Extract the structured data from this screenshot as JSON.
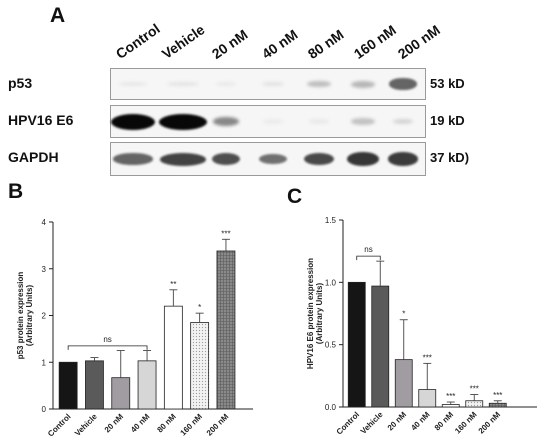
{
  "panels": {
    "a": "A",
    "b": "B",
    "c": "C"
  },
  "blot": {
    "lanes": [
      "Control",
      "Vehicle",
      "20 nM",
      "40 nM",
      "80 nM",
      "160 nM",
      "200 nM"
    ],
    "rows": [
      {
        "label": "p53",
        "size": "53 kD",
        "intensity": [
          0.04,
          0.05,
          0.03,
          0.06,
          0.22,
          0.25,
          0.6
        ]
      },
      {
        "label": "HPV16 E6",
        "size": "19 kD",
        "intensity": [
          1.0,
          1.0,
          0.45,
          0.02,
          0.03,
          0.2,
          0.12
        ]
      },
      {
        "label": "GAPDH",
        "size": "37 kD)",
        "intensity": [
          0.6,
          0.75,
          0.7,
          0.55,
          0.72,
          0.8,
          0.78
        ]
      }
    ]
  },
  "chart_data": [
    {
      "type": "bar",
      "panel": "B",
      "title": "",
      "ylabel": "p53 protein expression\n(Arbitrary Units)",
      "xlabel": "",
      "ylim": [
        0,
        4
      ],
      "yticks": [
        "0",
        "1",
        "2",
        "3",
        "4"
      ],
      "categories": [
        "Control",
        "Vehicle",
        "20 nM",
        "40 nM",
        "80 nM",
        "160 nM",
        "200 nM"
      ],
      "values": [
        1.0,
        1.03,
        0.67,
        1.03,
        2.2,
        1.85,
        3.38
      ],
      "errors": [
        0,
        0.07,
        0.58,
        0.22,
        0.35,
        0.2,
        0.25
      ],
      "significance": [
        "",
        "",
        "",
        "",
        "**",
        "*",
        "***"
      ],
      "bracket": {
        "from": "Control",
        "to": "40 nM",
        "y": 1.35,
        "label": "ns"
      },
      "colors": [
        "#151515",
        "#5a5a5a",
        "#a09ca1",
        "#d6d6d6",
        "#ffffff",
        "#e8e8e8",
        "#707070"
      ]
    },
    {
      "type": "bar",
      "panel": "C",
      "title": "",
      "ylabel": "HPV16 E6 protein expression\n(Arbitrary Units)",
      "xlabel": "",
      "ylim": [
        0,
        1.5
      ],
      "yticks": [
        "0.0",
        "0.5",
        "1.0",
        "1.5"
      ],
      "categories": [
        "Control",
        "Vehicle",
        "20 nM",
        "40 nM",
        "80 nM",
        "160 nM",
        "200 nM"
      ],
      "values": [
        1.0,
        0.97,
        0.38,
        0.14,
        0.02,
        0.05,
        0.03
      ],
      "errors": [
        0,
        0.2,
        0.32,
        0.21,
        0.02,
        0.05,
        0.02
      ],
      "significance": [
        "",
        "",
        "*",
        "***",
        "***",
        "***",
        "***"
      ],
      "bracket": {
        "from": "Control",
        "to": "Vehicle",
        "y": 1.21,
        "label": "ns"
      },
      "colors": [
        "#151515",
        "#5a5a5a",
        "#a09ca1",
        "#d6d6d6",
        "#ffffff",
        "#e8e8e8",
        "#707070"
      ]
    }
  ]
}
